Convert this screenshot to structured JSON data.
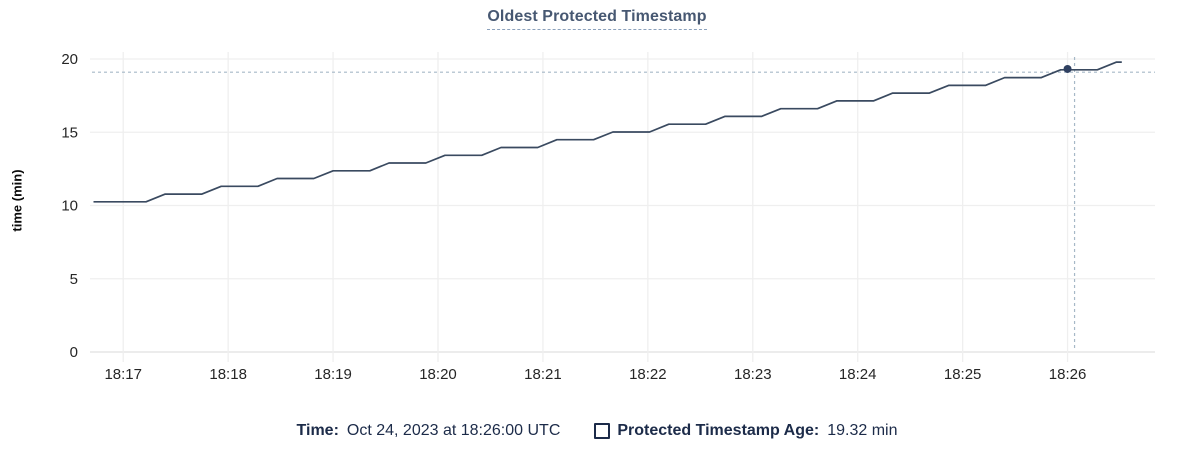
{
  "chart_data": {
    "type": "line",
    "title": "Oldest Protected Timestamp",
    "xlabel": "",
    "ylabel": "time (min)",
    "ylim": [
      0,
      20
    ],
    "y_ticks": [
      0,
      5,
      10,
      15,
      20
    ],
    "x_ticks": [
      "18:17",
      "18:18",
      "18:19",
      "18:20",
      "18:21",
      "18:22",
      "18:23",
      "18:24",
      "18:25",
      "18:26"
    ],
    "x_domain": [
      "18:16:41",
      "18:26:50"
    ],
    "grid": true,
    "legend_position": "bottom",
    "colors": {
      "line": "#3a4a60",
      "dot": "#2f4061",
      "crosshair": "#a6b8c7",
      "gridline": "#efefef",
      "axis_line": "#ececec",
      "tick_text": "#262626",
      "title": "#475872",
      "legend_text": "#1c2b49"
    },
    "series": [
      {
        "name": "Protected Timestamp Age",
        "unit": "min",
        "color": "#3a4a60",
        "points": [
          [
            "18:16:43",
            10.25
          ],
          [
            "18:17:13",
            10.25
          ],
          [
            "18:17:24",
            10.78
          ],
          [
            "18:17:45",
            10.78
          ],
          [
            "18:17:56",
            11.31
          ],
          [
            "18:18:17",
            11.31
          ],
          [
            "18:18:28",
            11.84
          ],
          [
            "18:18:49",
            11.84
          ],
          [
            "18:19:00",
            12.37
          ],
          [
            "18:19:21",
            12.37
          ],
          [
            "18:19:32",
            12.9
          ],
          [
            "18:19:53",
            12.9
          ],
          [
            "18:20:04",
            13.43
          ],
          [
            "18:20:25",
            13.43
          ],
          [
            "18:20:36",
            13.96
          ],
          [
            "18:20:57",
            13.96
          ],
          [
            "18:21:08",
            14.49
          ],
          [
            "18:21:29",
            14.49
          ],
          [
            "18:21:40",
            15.02
          ],
          [
            "18:22:01",
            15.02
          ],
          [
            "18:22:12",
            15.55
          ],
          [
            "18:22:33",
            15.55
          ],
          [
            "18:22:44",
            16.08
          ],
          [
            "18:23:05",
            16.08
          ],
          [
            "18:23:16",
            16.61
          ],
          [
            "18:23:37",
            16.61
          ],
          [
            "18:23:48",
            17.14
          ],
          [
            "18:24:09",
            17.14
          ],
          [
            "18:24:20",
            17.67
          ],
          [
            "18:24:41",
            17.67
          ],
          [
            "18:24:52",
            18.2
          ],
          [
            "18:25:13",
            18.2
          ],
          [
            "18:25:24",
            18.73
          ],
          [
            "18:25:45",
            18.73
          ],
          [
            "18:25:56",
            19.26
          ],
          [
            "18:26:17",
            19.26
          ],
          [
            "18:26:28",
            19.79
          ],
          [
            "18:26:31",
            19.79
          ]
        ]
      }
    ],
    "hover": {
      "time": "18:26:00",
      "value": 19.32,
      "crosshair_time": "18:26:04",
      "crosshair_value": 19.1
    }
  },
  "legend": {
    "time_label": "Time:",
    "time_value": "Oct 24, 2023 at 18:26:00 UTC",
    "series_label": "Protected Timestamp Age:",
    "series_value": "19.32 min"
  }
}
